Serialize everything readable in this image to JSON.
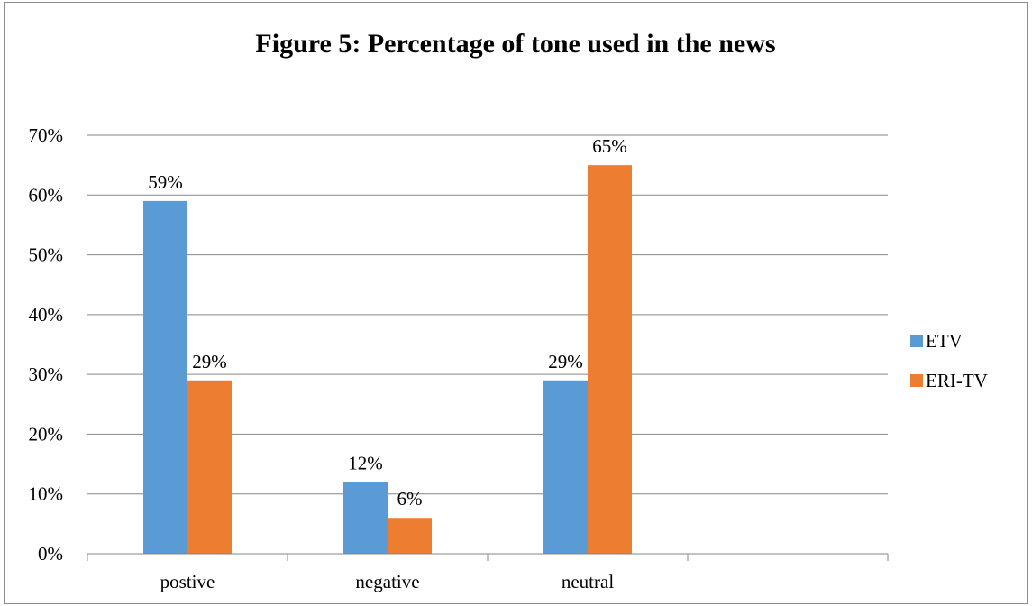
{
  "chart_data": {
    "type": "bar",
    "title": "Figure 5: Percentage of tone used in the news",
    "categories": [
      "postive",
      "negative",
      "neutral",
      ""
    ],
    "series": [
      {
        "name": "ETV",
        "values": [
          59,
          12,
          29,
          null
        ],
        "labels": [
          "59%",
          "12%",
          "29%",
          ""
        ],
        "color": "#5b9bd5"
      },
      {
        "name": "ERI-TV",
        "values": [
          29,
          6,
          65,
          null
        ],
        "labels": [
          "29%",
          "6%",
          "65%",
          ""
        ],
        "color": "#ed7d31"
      }
    ],
    "ylim": [
      0,
      70
    ],
    "yticks": [
      {
        "value": 0,
        "label": "0%"
      },
      {
        "value": 10,
        "label": "10%"
      },
      {
        "value": 20,
        "label": "20%"
      },
      {
        "value": 30,
        "label": "30%"
      },
      {
        "value": 40,
        "label": "40%"
      },
      {
        "value": 50,
        "label": "50%"
      },
      {
        "value": 60,
        "label": "60%"
      },
      {
        "value": 70,
        "label": "70%"
      }
    ],
    "grid": true,
    "legend_position": "right",
    "gridline_color": "#868686"
  }
}
